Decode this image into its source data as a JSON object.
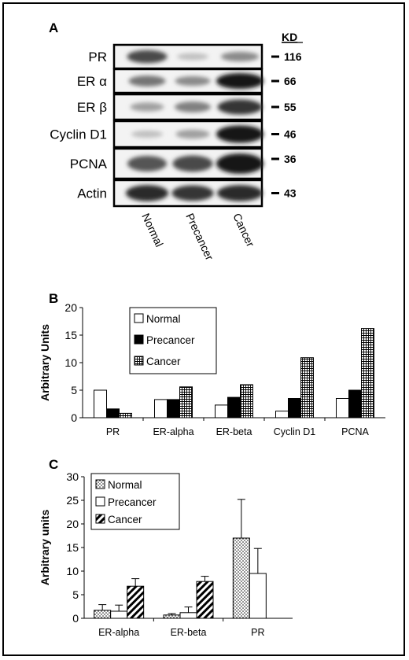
{
  "panel_a": {
    "letter": "A",
    "unit_label": "KD",
    "rows": [
      {
        "label": "PR",
        "kd": "116",
        "bands": [
          0.75,
          0.2,
          0.45
        ]
      },
      {
        "label": "ER α",
        "kd": "66",
        "bands": [
          0.55,
          0.45,
          1.0
        ]
      },
      {
        "label": "ER β",
        "kd": "55",
        "bands": [
          0.35,
          0.5,
          0.85
        ]
      },
      {
        "label": "Cyclin D1",
        "kd": "46",
        "bands": [
          0.2,
          0.35,
          1.0
        ]
      },
      {
        "label": "PCNA",
        "kd": "36",
        "bands": [
          0.7,
          0.75,
          1.0
        ]
      },
      {
        "label": "Actin",
        "kd": "43",
        "bands": [
          0.9,
          0.85,
          0.9
        ]
      }
    ],
    "lanes": [
      "Normal",
      "Precancer",
      "Cancer"
    ]
  },
  "chart_data": [
    {
      "panel": "B",
      "type": "bar",
      "title": "",
      "xlabel": "",
      "ylabel": "Arbitrary Units",
      "ylim": [
        0,
        20
      ],
      "yticks": [
        0,
        5,
        10,
        15,
        20
      ],
      "categories": [
        "PR",
        "ER-alpha",
        "ER-beta",
        "Cyclin D1",
        "PCNA"
      ],
      "series": [
        {
          "name": "Normal",
          "values": [
            5.0,
            3.3,
            2.3,
            1.2,
            3.5
          ],
          "fill": "#ffffff"
        },
        {
          "name": "Precancer",
          "values": [
            1.6,
            3.3,
            3.7,
            3.5,
            5.0
          ],
          "fill": "#000000"
        },
        {
          "name": "Cancer",
          "values": [
            0.8,
            5.6,
            6.0,
            10.9,
            16.2
          ],
          "fill": "pattern-grid"
        }
      ],
      "legend": "top-center"
    },
    {
      "panel": "C",
      "type": "bar",
      "title": "",
      "xlabel": "",
      "ylabel": "Arbitrary units",
      "ylim": [
        0,
        30
      ],
      "yticks": [
        0,
        5,
        10,
        15,
        20,
        25,
        30
      ],
      "categories": [
        "ER-alpha",
        "ER-beta",
        "PR"
      ],
      "series": [
        {
          "name": "Normal",
          "values": [
            1.7,
            0.7,
            17.0
          ],
          "errors": [
            1.2,
            0.3,
            8.2
          ],
          "fill": "pattern-dots"
        },
        {
          "name": "Precancer",
          "values": [
            1.5,
            1.2,
            9.5
          ],
          "errors": [
            1.3,
            1.2,
            5.3
          ],
          "fill": "#ffffff"
        },
        {
          "name": "Cancer",
          "values": [
            6.8,
            7.8,
            null
          ],
          "errors": [
            1.6,
            1.1,
            null
          ],
          "fill": "pattern-hatch"
        }
      ],
      "legend": "top-left"
    }
  ],
  "colors": {
    "ink": "#000000",
    "background": "#ffffff"
  }
}
